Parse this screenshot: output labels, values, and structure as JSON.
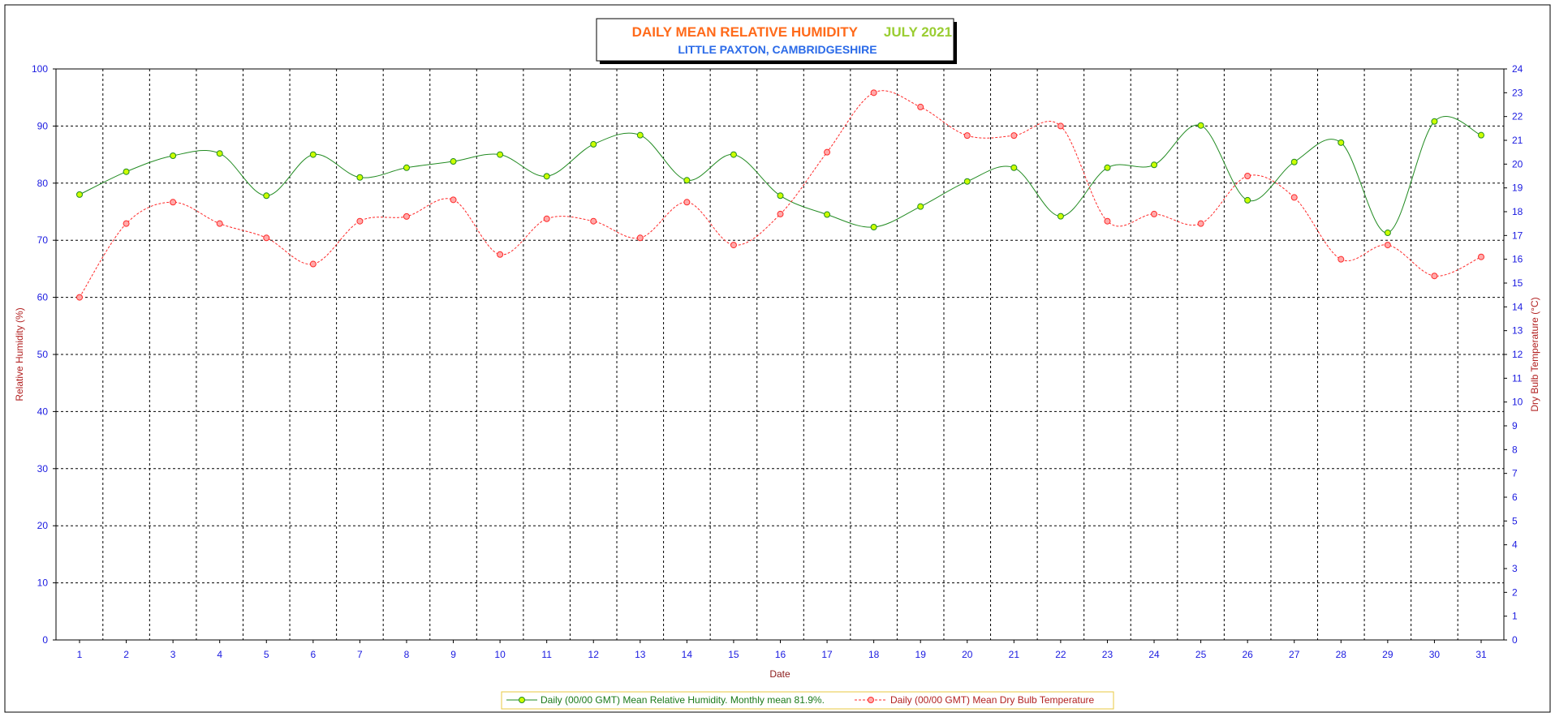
{
  "chart_data": {
    "type": "line",
    "title": "DAILY MEAN RELATIVE HUMIDITY",
    "title_month": "JULY 2021",
    "subtitle": "LITTLE PAXTON, CAMBRIDGESHIRE",
    "xlabel": "Date",
    "ylabel": "Relative Humidity (%)",
    "y2label": "Dry Bulb Temperature (°C)",
    "x": [
      1,
      2,
      3,
      4,
      5,
      6,
      7,
      8,
      9,
      10,
      11,
      12,
      13,
      14,
      15,
      16,
      17,
      18,
      19,
      20,
      21,
      22,
      23,
      24,
      25,
      26,
      27,
      28,
      29,
      30,
      31
    ],
    "ylim": [
      0,
      100
    ],
    "y2lim": [
      0,
      24
    ],
    "yticks": [
      0,
      10,
      20,
      30,
      40,
      50,
      60,
      70,
      80,
      90,
      100
    ],
    "y2ticks": [
      0,
      1,
      2,
      3,
      4,
      5,
      6,
      7,
      8,
      9,
      10,
      11,
      12,
      13,
      14,
      15,
      16,
      17,
      18,
      19,
      20,
      21,
      22,
      23,
      24
    ],
    "grid": true,
    "legend_position": "bottom",
    "series": [
      {
        "name": "Daily (00/00 GMT) Mean Relative Humidity. Monthly mean 81.9%.",
        "axis": "left",
        "color": "#228b22",
        "marker_color": "#ccff00",
        "values": [
          78.0,
          82.0,
          84.8,
          85.2,
          77.8,
          85.0,
          81.0,
          82.7,
          83.8,
          85.0,
          81.2,
          86.8,
          88.4,
          80.5,
          85.0,
          77.8,
          74.5,
          72.3,
          75.9,
          80.3,
          82.7,
          74.2,
          82.7,
          83.2,
          90.1,
          77.0,
          83.7,
          87.1,
          71.3,
          90.8,
          88.4
        ]
      },
      {
        "name": "Daily (00/00 GMT) Mean Dry Bulb Temperature",
        "axis": "right",
        "color": "#ff2a2a",
        "marker_color": "#ffaaaa",
        "dashed": true,
        "values": [
          14.4,
          17.5,
          18.4,
          17.5,
          16.9,
          15.8,
          17.6,
          17.8,
          18.5,
          16.2,
          17.7,
          17.6,
          16.9,
          18.4,
          16.6,
          17.9,
          20.5,
          23.0,
          22.4,
          21.2,
          21.2,
          21.6,
          17.6,
          17.9,
          17.5,
          19.5,
          18.6,
          16.0,
          16.6,
          15.3,
          16.1
        ]
      }
    ]
  },
  "colors": {
    "grid": "#000000",
    "tick_text": "#1a1ae0",
    "axis_title": "#b22222"
  }
}
